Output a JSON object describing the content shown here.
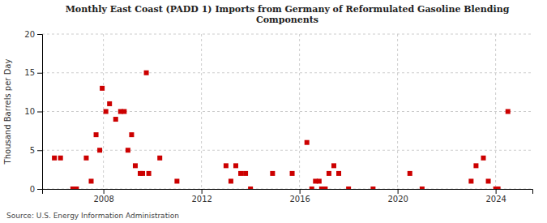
{
  "chart_data": {
    "type": "scatter",
    "title": "Monthly East Coast (PADD 1) Imports from Germany of Reformulated Gasoline Blending\nComponents",
    "ylabel": "Thousand Barrels per Day",
    "annotations": [
      "Source: U.S. Energy Information Administration"
    ],
    "color": "#cc0000",
    "marker": "square",
    "grid": true,
    "xlim": [
      2005.5,
      2025.5
    ],
    "xticks": [
      2008,
      2012,
      2016,
      2020,
      2024
    ],
    "ylim": [
      0,
      20
    ],
    "yticks": [
      0,
      5,
      10,
      15,
      20
    ],
    "x": [
      2006.0,
      2006.25,
      2006.75,
      2006.9,
      2007.3,
      2007.5,
      2007.7,
      2007.85,
      2007.95,
      2008.1,
      2008.25,
      2008.5,
      2008.7,
      2008.85,
      2009.0,
      2009.15,
      2009.3,
      2009.5,
      2009.6,
      2009.75,
      2009.85,
      2010.3,
      2011.0,
      2013.0,
      2013.2,
      2013.4,
      2013.6,
      2013.8,
      2014.0,
      2014.9,
      2015.7,
      2016.3,
      2016.5,
      2016.65,
      2016.8,
      2016.9,
      2017.05,
      2017.2,
      2017.4,
      2017.6,
      2018.0,
      2019.0,
      2020.5,
      2021.0,
      2023.0,
      2023.2,
      2023.5,
      2023.7,
      2024.0,
      2024.1,
      2024.5
    ],
    "values": [
      4.0,
      4.0,
      0.0,
      0.0,
      4.0,
      1.0,
      7.0,
      5.0,
      13.0,
      10.0,
      11.0,
      9.0,
      10.0,
      10.0,
      5.0,
      7.0,
      3.0,
      2.0,
      2.0,
      15.0,
      2.0,
      4.0,
      1.0,
      3.0,
      1.0,
      3.0,
      2.0,
      2.0,
      0.0,
      2.0,
      2.0,
      6.0,
      0.0,
      1.0,
      1.0,
      0.0,
      0.0,
      2.0,
      3.0,
      2.0,
      0.0,
      0.0,
      2.0,
      0.0,
      1.0,
      3.0,
      4.0,
      1.0,
      0.0,
      0.0,
      10.0
    ]
  }
}
